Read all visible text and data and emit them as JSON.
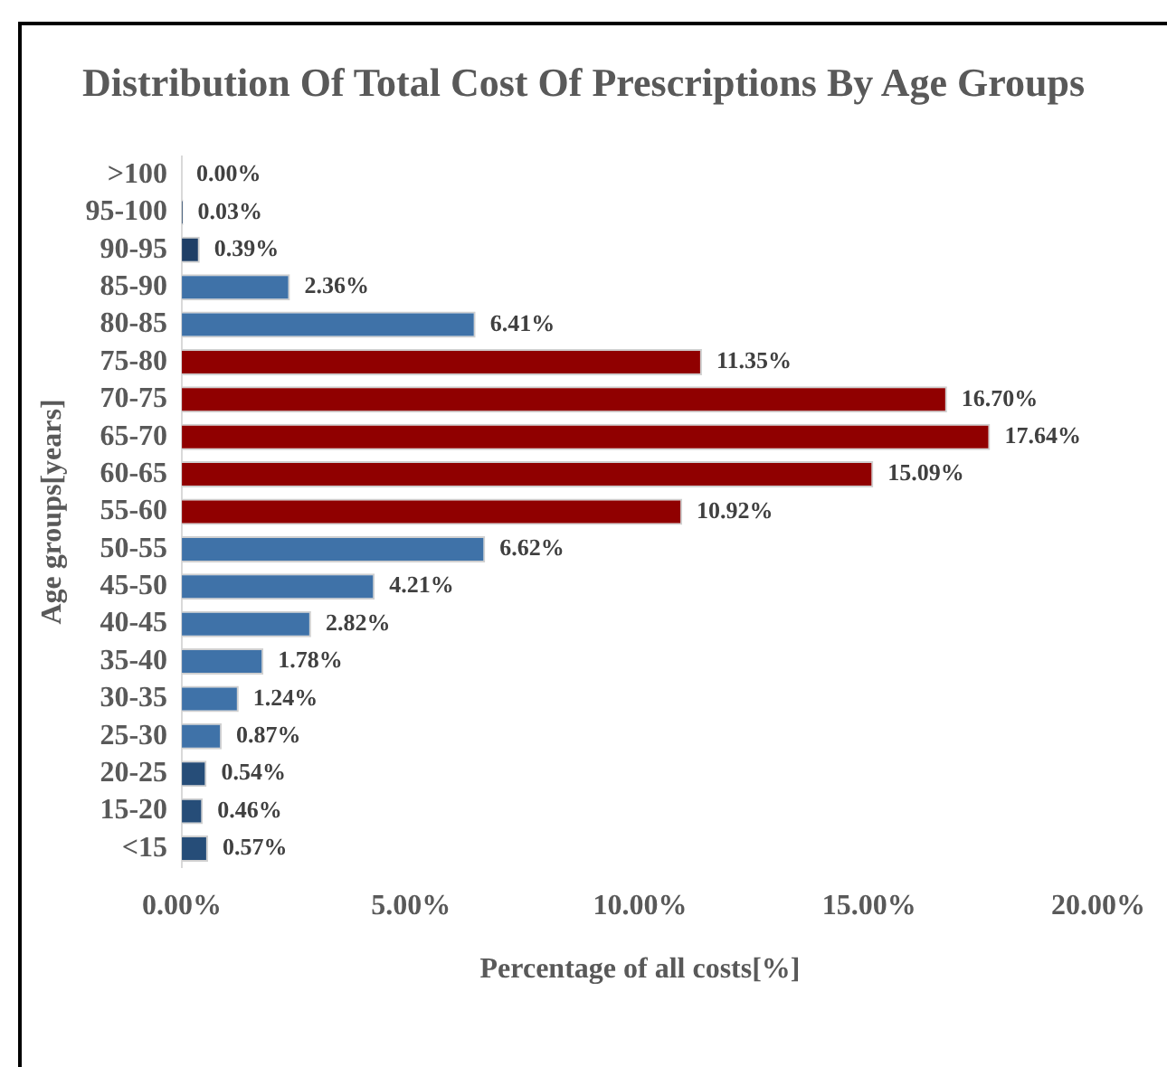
{
  "chart_data": {
    "type": "bar",
    "orientation": "horizontal",
    "title": "Distribution Of Total Cost Of Prescriptions By Age Groups",
    "xlabel": "Percentage of all costs[%]",
    "ylabel": "Age groups[years]",
    "categories": [
      ">100",
      "95-100",
      "90-95",
      "85-90",
      "80-85",
      "75-80",
      "70-75",
      "65-70",
      "60-65",
      "55-60",
      "50-55",
      "45-50",
      "40-45",
      "35-40",
      "30-35",
      "25-30",
      "20-25",
      "15-20",
      "<15"
    ],
    "values": [
      0.0,
      0.03,
      0.39,
      2.36,
      6.41,
      11.35,
      16.7,
      17.64,
      15.09,
      10.92,
      6.62,
      4.21,
      2.82,
      1.78,
      1.24,
      0.87,
      0.54,
      0.46,
      0.57
    ],
    "value_labels": [
      "0.00%",
      "0.03%",
      "0.39%",
      "2.36%",
      "6.41%",
      "11.35%",
      "16.70%",
      "17.64%",
      "15.09%",
      "10.92%",
      "6.62%",
      "4.21%",
      "2.82%",
      "1.78%",
      "1.24%",
      "0.87%",
      "0.54%",
      "0.46%",
      "0.57%"
    ],
    "colors": [
      "#1f3f66",
      "#1f3f66",
      "#1f3f66",
      "#3f72a8",
      "#3f72a8",
      "#900000",
      "#900000",
      "#900000",
      "#900000",
      "#900000",
      "#3f72a8",
      "#3f72a8",
      "#3f72a8",
      "#3f72a8",
      "#3f72a8",
      "#3f72a8",
      "#264d78",
      "#264d78",
      "#264d78"
    ],
    "xlim": [
      0,
      20
    ],
    "xticks": [
      {
        "value": 0,
        "label": "0.00%"
      },
      {
        "value": 5,
        "label": "5.00%"
      },
      {
        "value": 10,
        "label": "10.00%"
      },
      {
        "value": 15,
        "label": "15.00%"
      },
      {
        "value": 20,
        "label": "20.00%"
      }
    ],
    "grid": false,
    "legend": false
  }
}
